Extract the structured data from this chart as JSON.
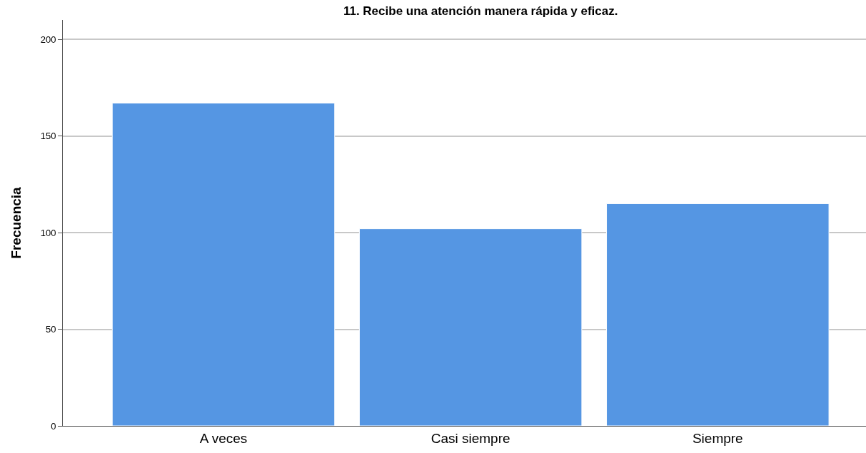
{
  "chart_data": {
    "type": "bar",
    "title": "11. Recibe una atención manera rápida y eficaz.",
    "ylabel": "Frecuencia",
    "categories": [
      "A veces",
      "Casi siempre",
      "Siempre"
    ],
    "values": [
      167,
      102,
      115
    ],
    "color": "#5596e3",
    "ylim": [
      0,
      210
    ],
    "yticks": [
      0,
      50,
      100,
      150,
      200
    ],
    "grid": "y"
  }
}
